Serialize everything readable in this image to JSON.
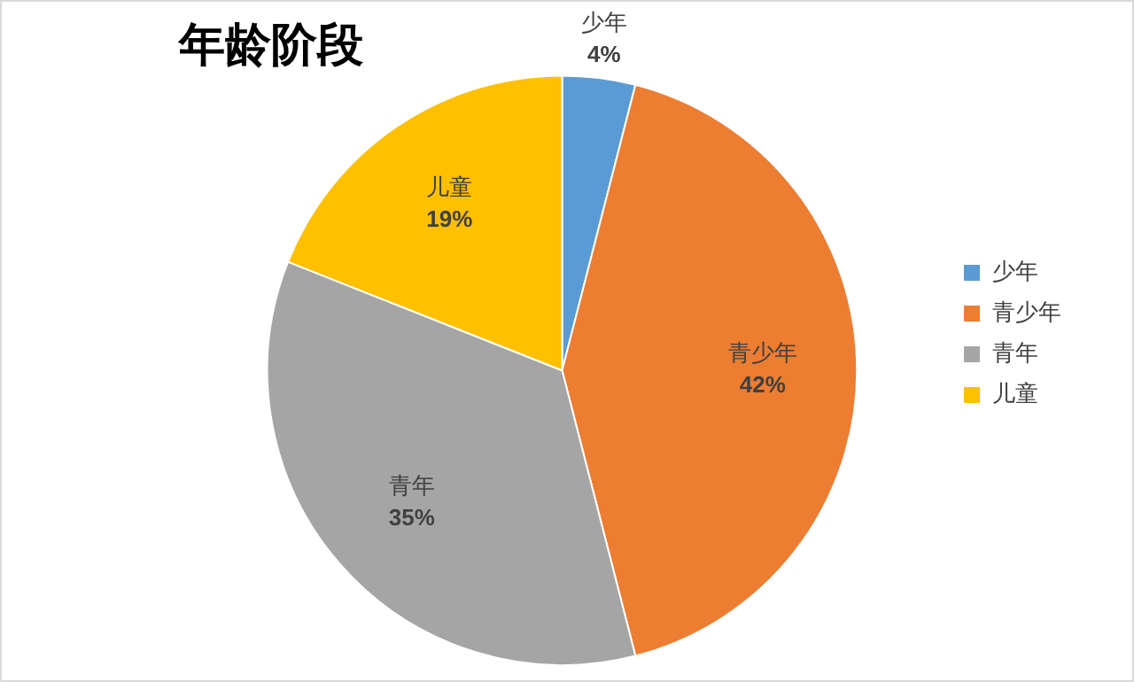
{
  "chart_data": {
    "type": "pie",
    "title": "年龄阶段",
    "categories": [
      "少年",
      "青少年",
      "青年",
      "儿童"
    ],
    "values": [
      4,
      42,
      35,
      19
    ],
    "value_labels": [
      "4%",
      "42%",
      "35%",
      "19%"
    ],
    "colors": [
      "#5b9bd5",
      "#ed7d31",
      "#a5a5a5",
      "#ffc000"
    ],
    "legend": "right"
  }
}
